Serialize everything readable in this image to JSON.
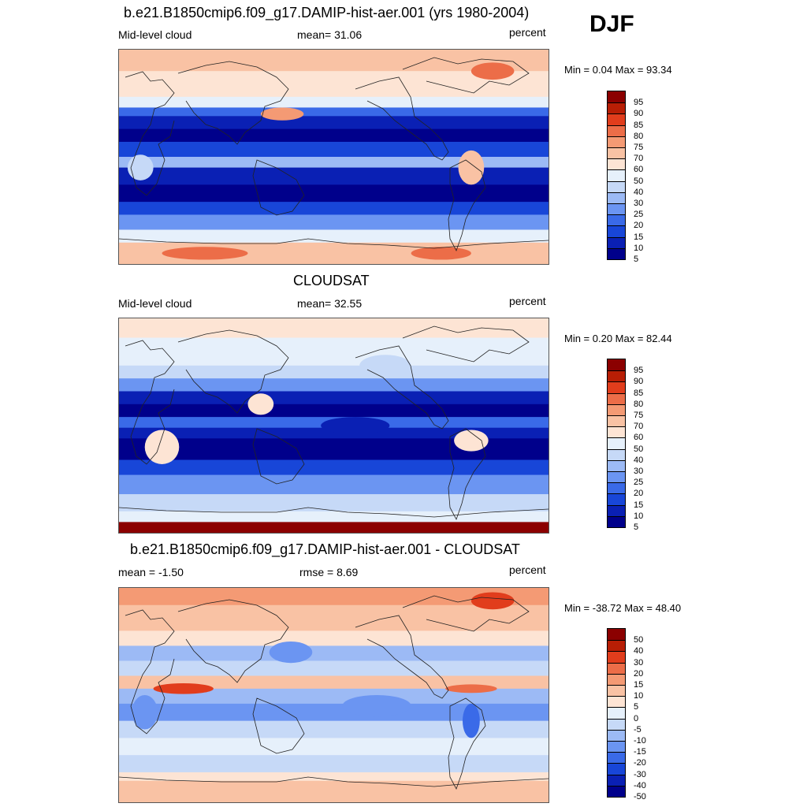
{
  "season": "DJF",
  "colors": {
    "scale": [
      "#00008b",
      "#0a20b4",
      "#1846d8",
      "#3a6ae8",
      "#6b95f2",
      "#9cbaf5",
      "#c6d9f7",
      "#e6f0fb",
      "#fde4d4",
      "#f9c2a4",
      "#f49a74",
      "#ec6d48",
      "#e13d1c",
      "#b81e05",
      "#8b0000"
    ]
  },
  "panels": [
    {
      "title": "b.e21.B1850cmip6.f09_g17.DAMIP-hist-aer.001 (yrs 1980-2004)",
      "left_label": "Mid-level cloud",
      "center_label": "mean=  31.06",
      "right_label": "percent",
      "minmax": "Min =   0.04 Max =  93.34",
      "cbar_labels": [
        "95",
        "90",
        "85",
        "80",
        "75",
        "70",
        "60",
        "50",
        "40",
        "30",
        "25",
        "20",
        "15",
        "10",
        "5"
      ],
      "map_kind": "model"
    },
    {
      "title": "CLOUDSAT",
      "left_label": "Mid-level cloud",
      "center_label": "mean=  32.55",
      "right_label": "percent",
      "minmax": "Min =   0.20 Max =  82.44",
      "cbar_labels": [
        "95",
        "90",
        "85",
        "80",
        "75",
        "70",
        "60",
        "50",
        "40",
        "30",
        "25",
        "20",
        "15",
        "10",
        "5"
      ],
      "map_kind": "obs"
    },
    {
      "title": "b.e21.B1850cmip6.f09_g17.DAMIP-hist-aer.001 - CLOUDSAT",
      "left_label": "mean =  -1.50",
      "center_label": "rmse =   8.69",
      "right_label": "percent",
      "minmax": "Min = -38.72 Max =  48.40",
      "cbar_labels": [
        "50",
        "40",
        "30",
        "20",
        "15",
        "10",
        "5",
        "0",
        "-5",
        "-10",
        "-15",
        "-20",
        "-30",
        "-40",
        "-50"
      ],
      "map_kind": "diff"
    }
  ]
}
